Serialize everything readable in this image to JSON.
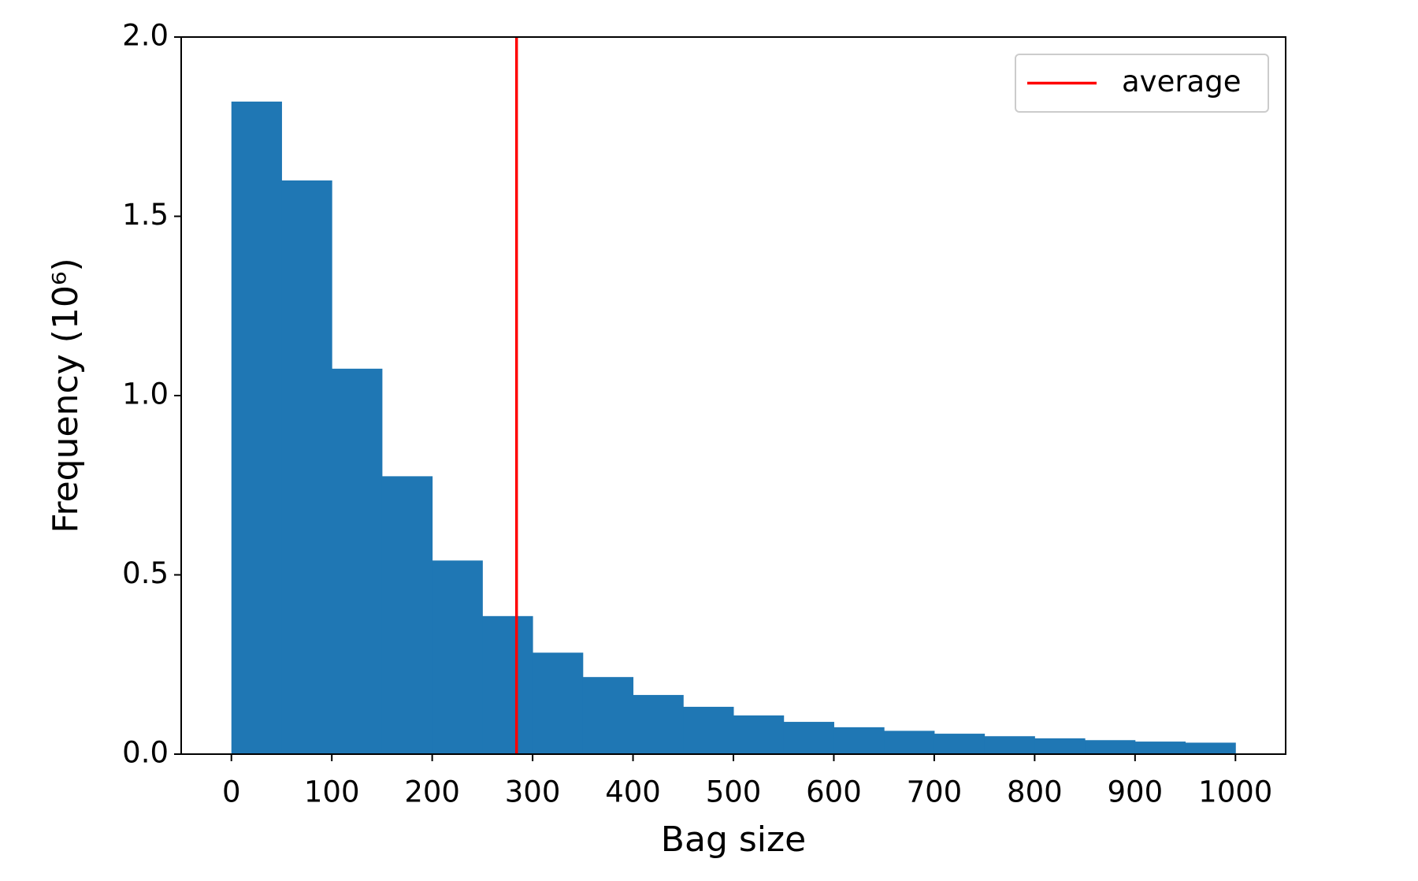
{
  "chart_data": {
    "type": "histogram",
    "x_label": "Bag size",
    "y_label": "Frequency (10⁶)",
    "bins": [
      0,
      50,
      100,
      150,
      200,
      250,
      300,
      350,
      400,
      450,
      500,
      550,
      600,
      650,
      700,
      750,
      800,
      850,
      900,
      950,
      1000
    ],
    "values": [
      1.82,
      1.6,
      1.075,
      0.775,
      0.54,
      0.385,
      0.283,
      0.215,
      0.165,
      0.132,
      0.108,
      0.09,
      0.075,
      0.065,
      0.057,
      0.05,
      0.044,
      0.039,
      0.035,
      0.032
    ],
    "color": "#1f77b4",
    "vlines": [
      {
        "name": "average",
        "x": 284,
        "color": "#ff0000"
      }
    ],
    "legend": "upper right",
    "xlim": [
      -50,
      1050
    ],
    "xticks": [
      0,
      100,
      200,
      300,
      400,
      500,
      600,
      700,
      800,
      900,
      1000
    ],
    "ylim": [
      0,
      2
    ],
    "yticks": [
      {
        "value": 0,
        "label": "0.0"
      },
      0.5,
      {
        "value": 1,
        "label": "1.0"
      },
      1.5,
      {
        "value": 2,
        "label": "2.0"
      }
    ]
  }
}
